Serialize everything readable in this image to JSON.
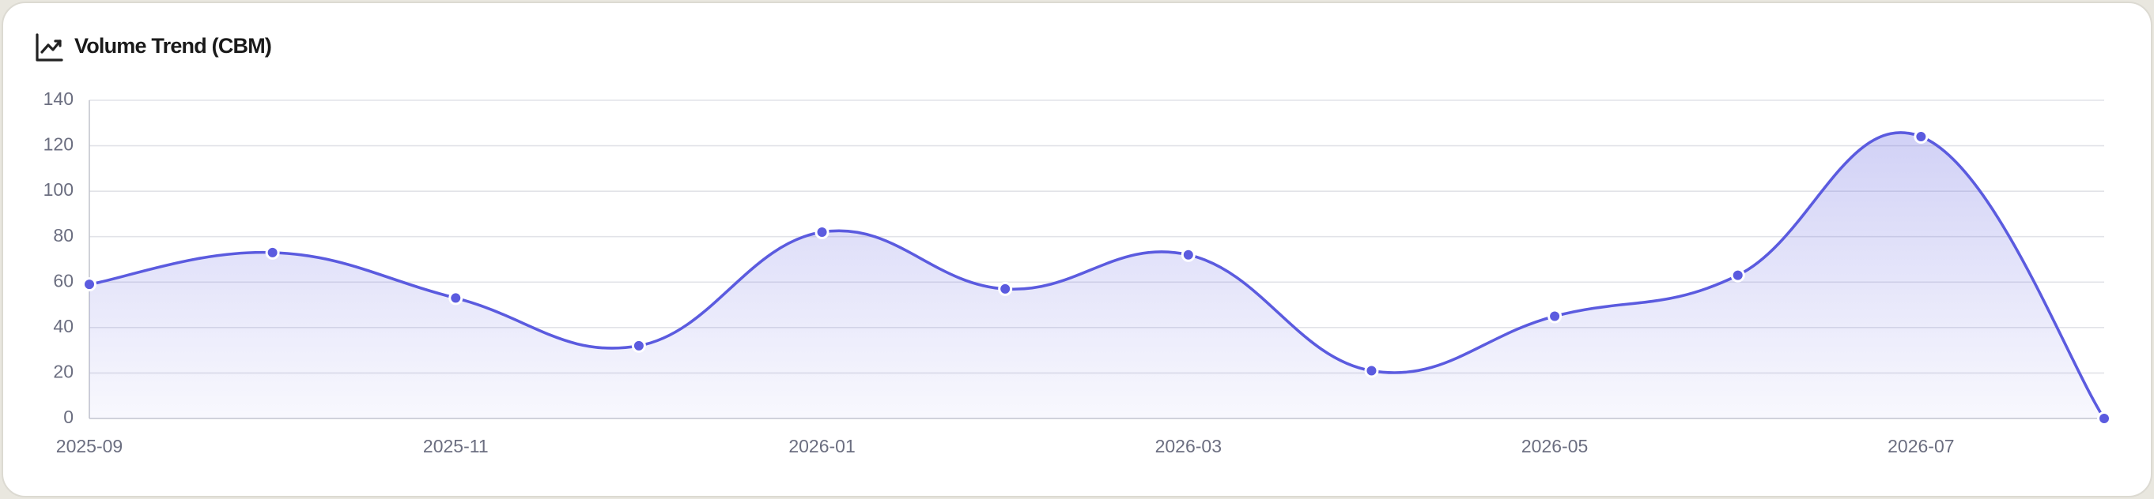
{
  "chart_data": {
    "type": "line",
    "title": "Volume Trend (CBM)",
    "categories": [
      "2025-09",
      null,
      "2025-11",
      null,
      "2026-01",
      null,
      "2026-03",
      null,
      "2026-05",
      null,
      "2026-07",
      null
    ],
    "values": [
      59,
      73,
      53,
      32,
      82,
      57,
      72,
      21,
      45,
      63,
      124,
      0
    ],
    "color": "#5b5bdf",
    "ylim": [
      0,
      140
    ],
    "yticks": [
      0,
      20,
      40,
      60,
      80,
      100,
      120,
      140
    ],
    "grid": true,
    "area": true
  }
}
